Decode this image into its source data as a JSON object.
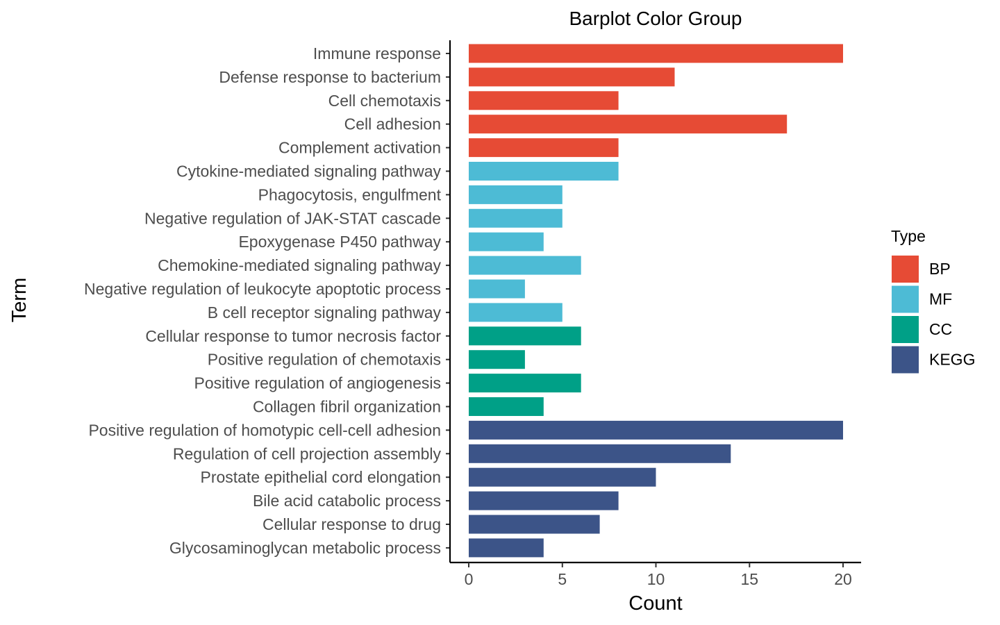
{
  "chart_data": {
    "type": "bar",
    "orientation": "horizontal",
    "title": "Barplot Color Group",
    "xlabel": "Count",
    "ylabel": "Term",
    "xlim": [
      0,
      21
    ],
    "xticks": [
      0,
      5,
      10,
      15,
      20
    ],
    "grid": false,
    "legend": {
      "title": "Type",
      "placement": "right",
      "entries": [
        {
          "name": "BP",
          "color": "#e64b35"
        },
        {
          "name": "MF",
          "color": "#4dbbd5"
        },
        {
          "name": "CC",
          "color": "#00a087"
        },
        {
          "name": "KEGG",
          "color": "#3c5488"
        }
      ]
    },
    "bars": [
      {
        "term": "Immune response",
        "value": 20,
        "type": "BP"
      },
      {
        "term": "Defense response to bacterium",
        "value": 11,
        "type": "BP"
      },
      {
        "term": "Cell chemotaxis",
        "value": 8,
        "type": "BP"
      },
      {
        "term": "Cell adhesion",
        "value": 17,
        "type": "BP"
      },
      {
        "term": "Complement activation",
        "value": 8,
        "type": "BP"
      },
      {
        "term": "Cytokine-mediated signaling pathway",
        "value": 8,
        "type": "MF"
      },
      {
        "term": "Phagocytosis, engulfment",
        "value": 5,
        "type": "MF"
      },
      {
        "term": "Negative regulation of JAK-STAT cascade",
        "value": 5,
        "type": "MF"
      },
      {
        "term": "Epoxygenase P450 pathway",
        "value": 4,
        "type": "MF"
      },
      {
        "term": "Chemokine-mediated signaling pathway",
        "value": 6,
        "type": "MF"
      },
      {
        "term": "Negative regulation of leukocyte apoptotic process",
        "value": 3,
        "type": "MF"
      },
      {
        "term": "B cell receptor signaling pathway",
        "value": 5,
        "type": "MF"
      },
      {
        "term": "Cellular response to tumor necrosis factor",
        "value": 6,
        "type": "CC"
      },
      {
        "term": "Positive regulation of chemotaxis",
        "value": 3,
        "type": "CC"
      },
      {
        "term": "Positive regulation of angiogenesis",
        "value": 6,
        "type": "CC"
      },
      {
        "term": "Collagen fibril organization",
        "value": 4,
        "type": "CC"
      },
      {
        "term": "Positive regulation of homotypic cell-cell adhesion",
        "value": 20,
        "type": "KEGG"
      },
      {
        "term": "Regulation of cell projection assembly",
        "value": 14,
        "type": "KEGG"
      },
      {
        "term": "Prostate epithelial cord elongation",
        "value": 10,
        "type": "KEGG"
      },
      {
        "term": "Bile acid catabolic process",
        "value": 8,
        "type": "KEGG"
      },
      {
        "term": "Cellular response to drug",
        "value": 7,
        "type": "KEGG"
      },
      {
        "term": "Glycosaminoglycan metabolic process",
        "value": 4,
        "type": "KEGG"
      }
    ]
  }
}
